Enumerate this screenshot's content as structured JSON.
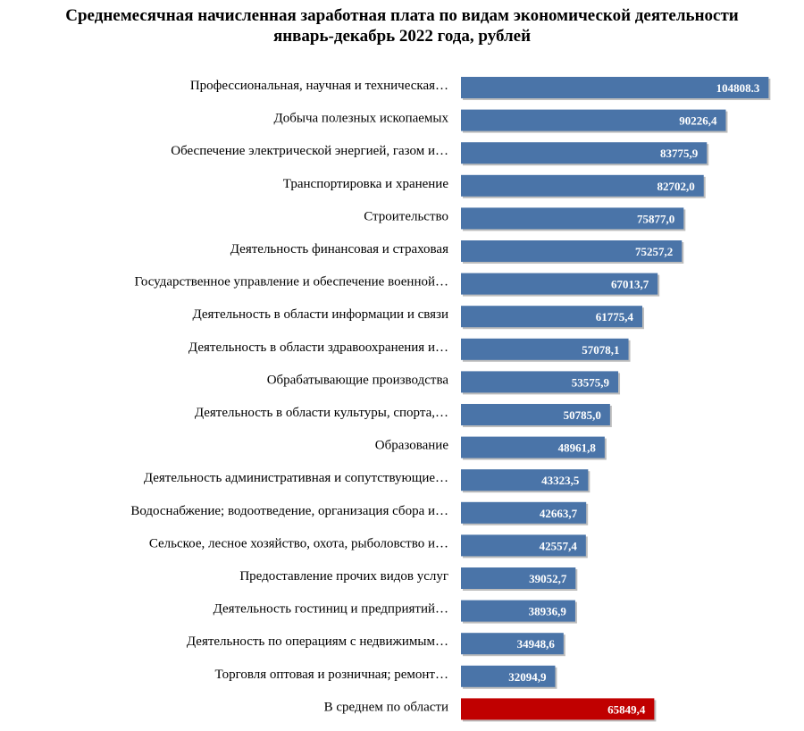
{
  "chart_data": {
    "type": "bar",
    "orientation": "horizontal",
    "title": "Среднемесячная начисленная заработная плата по видам экономической деятельности",
    "subtitle": "январь-декабрь 2022 года, рублей",
    "categories": [
      "Профессиональная, научная и техническая…",
      "Добыча полезных ископаемых",
      "Обеспечение электрической энергией, газом и…",
      "Транспортировка и хранение",
      "Строительство",
      "Деятельность финансовая и страховая",
      "Государственное управление и обеспечение военной…",
      "Деятельность в области информации и связи",
      "Деятельность в области здравоохранения и…",
      "Обрабатывающие производства",
      "Деятельность в области культуры, спорта,…",
      "Образование",
      "Деятельность административная и сопутствующие…",
      "Водоснабжение; водоотведение, организация сбора и…",
      "Сельское, лесное хозяйство, охота, рыболовство и…",
      "Предоставление прочих видов услуг",
      "Деятельность гостиниц и предприятий…",
      "Деятельность по операциям с недвижимым…",
      "Торговля оптовая и розничная; ремонт…",
      "В среднем по области"
    ],
    "values": [
      104808.3,
      90226.4,
      83775.9,
      82702.0,
      75877.0,
      75257.2,
      67013.7,
      61775.4,
      57078.1,
      53575.9,
      50785.0,
      48961.8,
      43323.5,
      42663.7,
      42557.4,
      39052.7,
      38936.9,
      34948.6,
      32094.9,
      65849.4
    ],
    "value_labels": [
      "104808.3",
      "90226,4",
      "83775,9",
      "82702,0",
      "75877,0",
      "75257,2",
      "67013,7",
      "61775,4",
      "57078,1",
      "53575,9",
      "50785,0",
      "48961,8",
      "43323,5",
      "42663,7",
      "42557,4",
      "39052,7",
      "38936,9",
      "34948,6",
      "32094,9",
      "65849,4"
    ],
    "highlight_index": 19,
    "xlim": [
      0,
      105000
    ],
    "grid": false,
    "colors": {
      "bar": "#4a74a8",
      "highlight": "#c00000",
      "bar_shadow": "#bdbdbd",
      "value_text": "#ffffff"
    }
  }
}
